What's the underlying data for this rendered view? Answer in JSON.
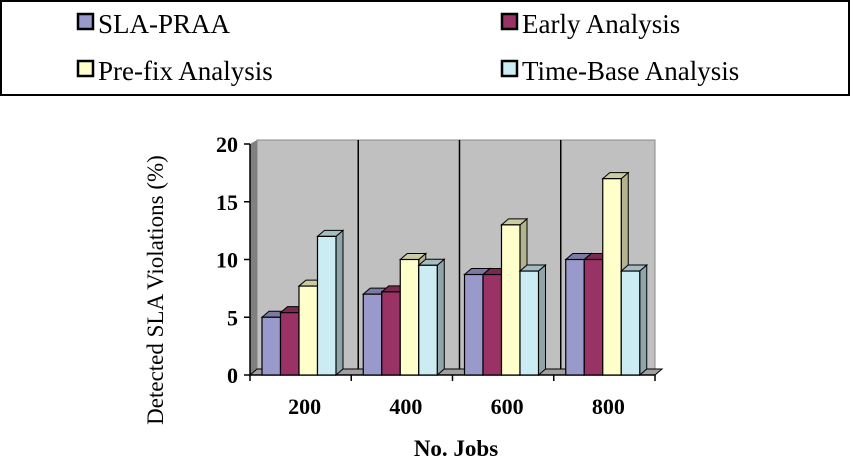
{
  "chart_data": {
    "type": "bar",
    "style": "3d-clustered-column",
    "categories": [
      "200",
      "400",
      "600",
      "800"
    ],
    "series": [
      {
        "name": "SLA-PRAA",
        "values": [
          5,
          7,
          8.7,
          10
        ],
        "color": "#9999cc"
      },
      {
        "name": "Early Analysis",
        "values": [
          5.4,
          7.2,
          8.7,
          10
        ],
        "color": "#993366"
      },
      {
        "name": "Pre-fix Analysis",
        "values": [
          7.7,
          10,
          13,
          17
        ],
        "color": "#ffffcc"
      },
      {
        "name": "Time-Base Analysis",
        "values": [
          12,
          9.5,
          9,
          9
        ],
        "color": "#ccecf4"
      }
    ],
    "xlabel": "No. Jobs",
    "ylabel": "Detected SLA Violations (%)",
    "ylim": [
      0,
      20
    ],
    "yticks": [
      "0",
      "5",
      "10",
      "15",
      "20"
    ],
    "grid": "vertical category dividers",
    "wall_color": "#c0c0c0",
    "legend": "top"
  }
}
